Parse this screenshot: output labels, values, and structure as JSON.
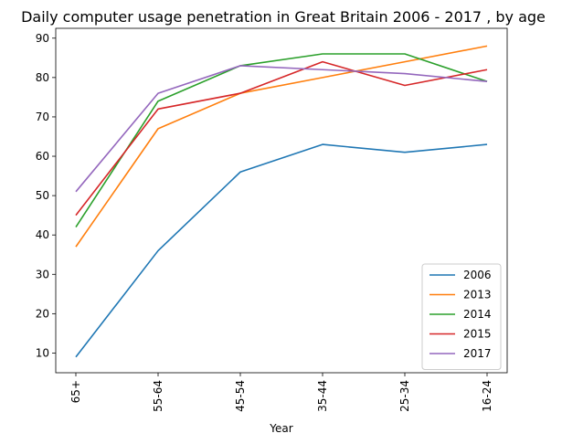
{
  "chart_data": {
    "type": "line",
    "title": "Daily computer usage penetration in Great Britain 2006 - 2017 , by age",
    "xlabel": "Year",
    "ylabel": "",
    "categories": [
      "65+",
      "55-64",
      "45-54",
      "35-44",
      "25-34",
      "16-24"
    ],
    "yticks": [
      10,
      20,
      30,
      40,
      50,
      60,
      70,
      80,
      90
    ],
    "ylim": [
      5,
      92.5
    ],
    "grid": false,
    "legend_position": "lower-right",
    "series": [
      {
        "name": "2006",
        "color": "#1f77b4",
        "values": [
          9,
          36,
          56,
          63,
          61,
          63
        ]
      },
      {
        "name": "2013",
        "color": "#ff7f0e",
        "values": [
          37,
          67,
          76,
          80,
          84,
          88
        ]
      },
      {
        "name": "2014",
        "color": "#2ca02c",
        "values": [
          42,
          74,
          83,
          86,
          86,
          79
        ]
      },
      {
        "name": "2015",
        "color": "#d62728",
        "values": [
          45,
          72,
          76,
          84,
          78,
          82
        ]
      },
      {
        "name": "2017",
        "color": "#9467bd",
        "values": [
          51,
          76,
          83,
          82,
          81,
          79
        ]
      }
    ]
  }
}
